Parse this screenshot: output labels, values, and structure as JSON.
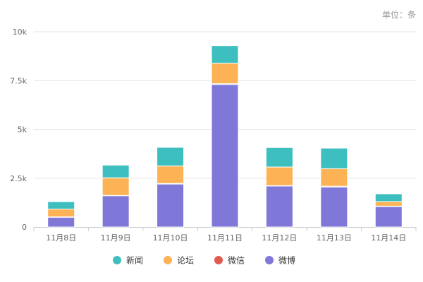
{
  "unit_label": "单位：条",
  "colors": {
    "news": "#3ebfbf",
    "forum": "#fdb256",
    "wechat": "#e35b4e",
    "weibo": "#7f78d8",
    "grid": "#e6e6e6",
    "axis": "#cccccc"
  },
  "chart_data": {
    "type": "bar",
    "stacked": true,
    "categories": [
      "11月8日",
      "11月9日",
      "11月10日",
      "11月11日",
      "11月12日",
      "11月13日",
      "11月14日"
    ],
    "series": [
      {
        "name": "微博",
        "color": "#7f78d8",
        "values": [
          500,
          1600,
          2200,
          7300,
          2100,
          2050,
          1050
        ]
      },
      {
        "name": "微信",
        "color": "#e35b4e",
        "values": [
          20,
          20,
          30,
          40,
          20,
          40,
          20
        ]
      },
      {
        "name": "论坛",
        "color": "#fdb256",
        "values": [
          400,
          900,
          900,
          1050,
          950,
          900,
          230
        ]
      },
      {
        "name": "新闻",
        "color": "#3ebfbf",
        "values": [
          380,
          650,
          950,
          900,
          1000,
          1050,
          400
        ]
      }
    ],
    "y_ticks": [
      "0",
      "2.5k",
      "5k",
      "7.5k",
      "10k"
    ],
    "ylim": [
      0,
      10000
    ],
    "grid": true,
    "legend": {
      "placement": "bottom-center",
      "items": [
        {
          "name": "新闻",
          "color": "#3ebfbf"
        },
        {
          "name": "论坛",
          "color": "#fdb256"
        },
        {
          "name": "微信",
          "color": "#e35b4e"
        },
        {
          "name": "微博",
          "color": "#7f78d8"
        }
      ]
    }
  }
}
